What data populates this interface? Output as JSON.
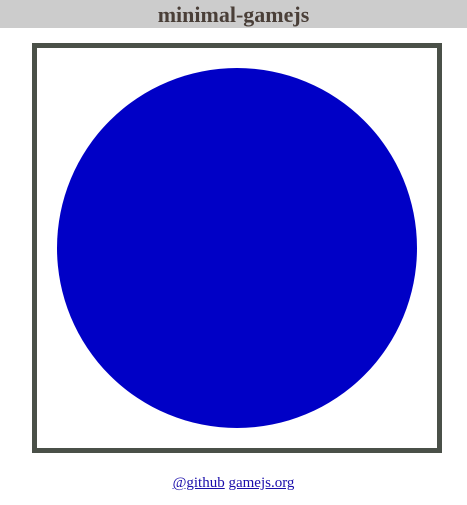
{
  "header": {
    "title": "minimal-gamejs"
  },
  "game": {
    "canvas_background": "#ffffff",
    "frame_border_color": "#4a5048",
    "ball": {
      "shape": "circle",
      "color": "#0000c6"
    }
  },
  "footer": {
    "links": [
      {
        "label": "@github"
      },
      {
        "label": "gamejs.org"
      }
    ],
    "link_color": "#1a0dab"
  }
}
